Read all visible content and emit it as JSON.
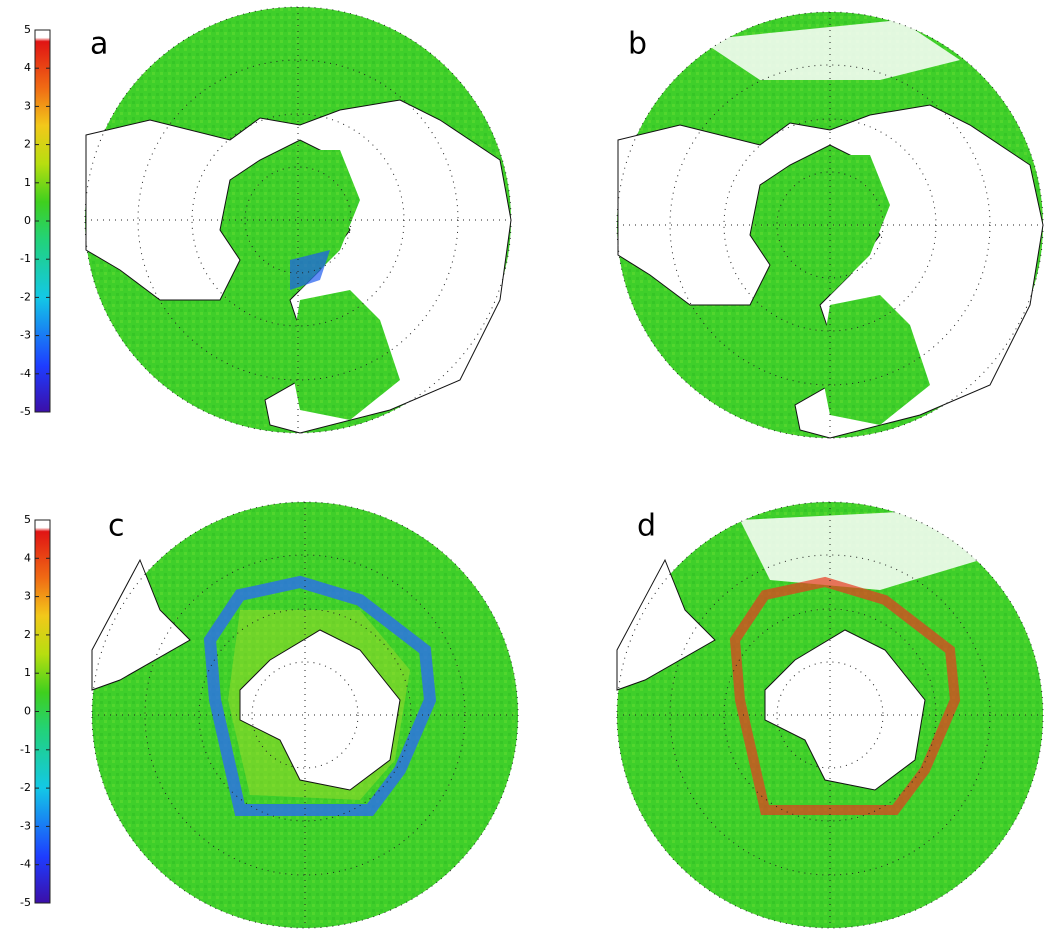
{
  "panels": [
    {
      "label": "a"
    },
    {
      "label": "b"
    },
    {
      "label": "c"
    },
    {
      "label": "d"
    }
  ],
  "colorbars": [
    {
      "lim": [
        -5,
        5
      ],
      "ticks": [
        -5,
        -4,
        -3,
        -2,
        -1,
        0,
        1,
        2,
        3,
        4,
        5
      ]
    },
    {
      "lim": [
        -5,
        5
      ],
      "ticks": [
        -5,
        -4,
        -3,
        -2,
        -1,
        0,
        1,
        2,
        3,
        4,
        5
      ]
    }
  ]
}
